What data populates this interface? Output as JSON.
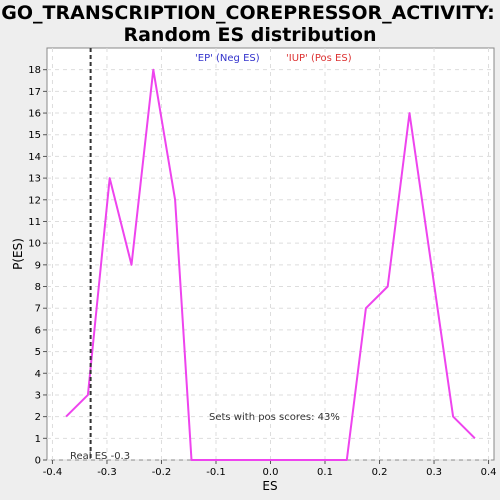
{
  "chart_data": {
    "type": "line",
    "title_line1": "GO_TRANSCRIPTION_COREPRESSOR_ACTIVITY:",
    "title_line2": "Random ES distribution",
    "xlabel": "ES",
    "ylabel": "P(ES)",
    "xlim": [
      -0.41,
      0.41
    ],
    "ylim": [
      0,
      19
    ],
    "x_ticks": [
      -0.4,
      -0.3,
      -0.2,
      -0.1,
      0.0,
      0.1,
      0.2,
      0.3,
      0.4
    ],
    "x_tick_labels": [
      "-0.4",
      "-0.3",
      "-0.2",
      "-0.1",
      "0.0",
      "0.1",
      "0.2",
      "0.3",
      "0.4"
    ],
    "y_ticks": [
      0,
      1,
      2,
      3,
      4,
      5,
      6,
      7,
      8,
      9,
      10,
      11,
      12,
      13,
      14,
      15,
      16,
      17,
      18
    ],
    "y_tick_labels": [
      "0",
      "1",
      "2",
      "3",
      "4",
      "5",
      "6",
      "7",
      "8",
      "9",
      "10",
      "11",
      "12",
      "13",
      "14",
      "15",
      "16",
      "17",
      "18"
    ],
    "grid": true,
    "series": [
      {
        "color": "#ee44ee",
        "x": [
          -0.375,
          -0.335,
          -0.295,
          -0.255,
          -0.215,
          -0.175,
          -0.145,
          -0.1,
          -0.05,
          0.0,
          0.05,
          0.1,
          0.14,
          0.175,
          0.215,
          0.255,
          0.295,
          0.335,
          0.375
        ],
        "y": [
          2,
          3,
          13,
          9,
          18,
          12,
          0,
          0,
          0,
          0,
          0,
          0,
          0,
          7,
          8,
          16,
          9,
          2,
          1
        ]
      }
    ],
    "real_es": {
      "x": -0.33,
      "label": "Real ES -0.3"
    },
    "legend": [
      {
        "label": "'EP' (Neg ES)",
        "color": "#3333cc"
      },
      {
        "label": "'IUP' (Pos ES)",
        "color": "#dd3333"
      }
    ],
    "annotation": "Sets with pos scores: 43%"
  }
}
